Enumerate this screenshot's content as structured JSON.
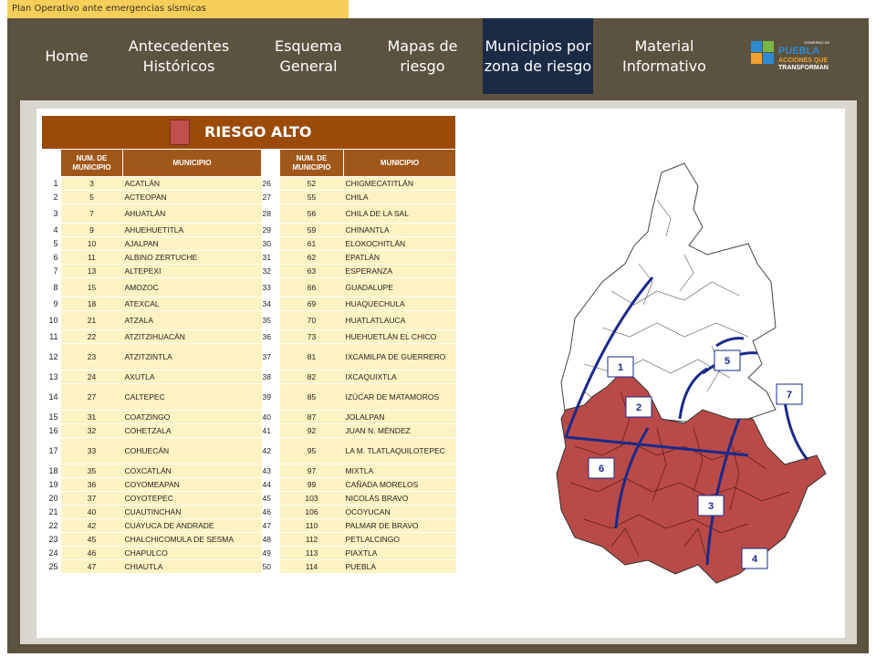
{
  "top_title": "Plan Operativo ante emergencias sísmicas",
  "nav": {
    "home": "Home",
    "antecedentes": "Antecedentes Históricos",
    "esquema": "Esquema General",
    "mapas": "Mapas de riesgo",
    "municipios": "Municipios por zona de riesgo",
    "material": "Material Informativo"
  },
  "logo": {
    "gov": "GOBIERNO DE",
    "state": "PUEBLA",
    "slogan1": "ACCIONES QUE",
    "slogan2": "TRANSFORMAN"
  },
  "table": {
    "title": "RIESGO ALTO",
    "headers": {
      "num": "NUM. DE MUNICIPIO",
      "municipio": "MUNICIPIO"
    },
    "rows": [
      {
        "i": "1",
        "n1": "3",
        "m1": "ACATLÁN",
        "j": "26",
        "n2": "52",
        "m2": "CHIGMECATITLÁN"
      },
      {
        "i": "2",
        "n1": "5",
        "m1": "ACTEOPAN",
        "j": "27",
        "n2": "55",
        "m2": "CHILA"
      },
      {
        "i": "3",
        "n1": "7",
        "m1": "AHUATLÁN",
        "j": "28",
        "n2": "56",
        "m2": "CHILA DE LA SAL"
      },
      {
        "i": "4",
        "n1": "9",
        "m1": "AHUEHUETITLA",
        "j": "29",
        "n2": "59",
        "m2": "CHINANTLA"
      },
      {
        "i": "5",
        "n1": "10",
        "m1": "AJALPAN",
        "j": "30",
        "n2": "61",
        "m2": "ELOXOCHITLÁN"
      },
      {
        "i": "6",
        "n1": "11",
        "m1": "ALBINO ZERTUCHE",
        "j": "31",
        "n2": "62",
        "m2": "EPATLÁN"
      },
      {
        "i": "7",
        "n1": "13",
        "m1": "ALTEPEXI",
        "j": "32",
        "n2": "63",
        "m2": "ESPERANZA"
      },
      {
        "i": "8",
        "n1": "15",
        "m1": "AMOZOC",
        "j": "33",
        "n2": "66",
        "m2": "GUADALUPE"
      },
      {
        "i": "9",
        "n1": "18",
        "m1": "ATEXCAL",
        "j": "34",
        "n2": "69",
        "m2": "HUAQUECHULA"
      },
      {
        "i": "10",
        "n1": "21",
        "m1": "ATZALA",
        "j": "35",
        "n2": "70",
        "m2": "HUATLATLAUCA"
      },
      {
        "i": "11",
        "n1": "22",
        "m1": "ATZITZIHUACÁN",
        "j": "36",
        "n2": "73",
        "m2": "HUEHUETLÁN EL CHICO"
      },
      {
        "i": "12",
        "n1": "23",
        "m1": "ATZITZINTLA",
        "j": "37",
        "n2": "81",
        "m2": "IXCAMILPA DE GUERRERO"
      },
      {
        "i": "13",
        "n1": "24",
        "m1": "AXUTLA",
        "j": "38",
        "n2": "82",
        "m2": "IXCAQUIXTLA"
      },
      {
        "i": "14",
        "n1": "27",
        "m1": "CALTEPEC",
        "j": "39",
        "n2": "85",
        "m2": "IZÚCAR DE MATAMOROS"
      },
      {
        "i": "15",
        "n1": "31",
        "m1": "COATZINGO",
        "j": "40",
        "n2": "87",
        "m2": "JOLALPAN"
      },
      {
        "i": "16",
        "n1": "32",
        "m1": "COHETZALA",
        "j": "41",
        "n2": "92",
        "m2": "JUAN N. MÉNDEZ"
      },
      {
        "i": "17",
        "n1": "33",
        "m1": "COHUECÁN",
        "j": "42",
        "n2": "95",
        "m2": "LA M. TLATLAQUILOTEPEC"
      },
      {
        "i": "18",
        "n1": "35",
        "m1": "COXCATLÁN",
        "j": "43",
        "n2": "97",
        "m2": "MIXTLA"
      },
      {
        "i": "19",
        "n1": "36",
        "m1": "COYOMEAPAN",
        "j": "44",
        "n2": "99",
        "m2": "CAÑADA MORELOS"
      },
      {
        "i": "20",
        "n1": "37",
        "m1": "COYOTEPEC",
        "j": "45",
        "n2": "103",
        "m2": "NICOLÁS BRAVO"
      },
      {
        "i": "21",
        "n1": "40",
        "m1": "CUAUTINCHÁN",
        "j": "46",
        "n2": "106",
        "m2": "OCOYUCAN"
      },
      {
        "i": "22",
        "n1": "42",
        "m1": "CUAYUCA DE ANDRADE",
        "j": "47",
        "n2": "110",
        "m2": "PALMAR DE BRAVO"
      },
      {
        "i": "23",
        "n1": "45",
        "m1": "CHALCHICOMULA DE SESMA",
        "j": "48",
        "n2": "112",
        "m2": "PETLALCINGO"
      },
      {
        "i": "24",
        "n1": "46",
        "m1": "CHAPULCO",
        "j": "49",
        "n2": "113",
        "m2": "PIAXTLA"
      },
      {
        "i": "25",
        "n1": "47",
        "m1": "CHIAUTLA",
        "j": "50",
        "n2": "114",
        "m2": "PUEBLA"
      }
    ]
  },
  "map": {
    "zones": [
      "1",
      "2",
      "3",
      "4",
      "5",
      "6",
      "7"
    ],
    "highrisk_color": "#b94a48",
    "line_color": "#1a2a8a"
  }
}
